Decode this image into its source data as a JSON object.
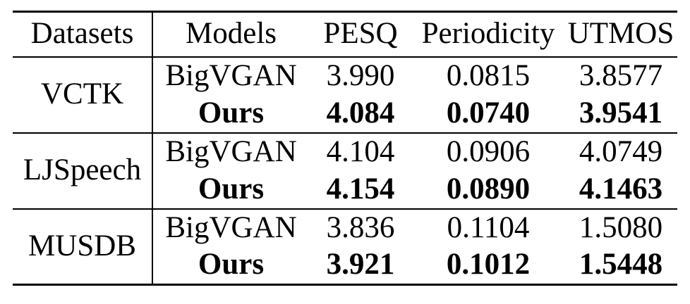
{
  "table": {
    "headers": {
      "datasets": "Datasets",
      "models": "Models",
      "pesq": "PESQ",
      "periodicity": "Periodicity",
      "utmos": "UTMOS"
    },
    "groups": [
      {
        "dataset": "VCTK",
        "rows": [
          {
            "model": "BigVGAN",
            "pesq": "3.990",
            "periodicity": "0.0815",
            "utmos": "3.8577"
          },
          {
            "model": "Ours",
            "pesq": "4.084",
            "periodicity": "0.0740",
            "utmos": "3.9541"
          }
        ]
      },
      {
        "dataset": "LJSpeech",
        "rows": [
          {
            "model": "BigVGAN",
            "pesq": "4.104",
            "periodicity": "0.0906",
            "utmos": "4.0749"
          },
          {
            "model": "Ours",
            "pesq": "4.154",
            "periodicity": "0.0890",
            "utmos": "4.1463"
          }
        ]
      },
      {
        "dataset": "MUSDB",
        "rows": [
          {
            "model": "BigVGAN",
            "pesq": "3.836",
            "periodicity": "0.1104",
            "utmos": "1.5080"
          },
          {
            "model": "Ours",
            "pesq": "3.921",
            "periodicity": "0.1012",
            "utmos": "1.5448"
          }
        ]
      }
    ],
    "emphasis_note": "Ours rows are bold (best results)"
  },
  "chart_data": {
    "type": "table",
    "columns": [
      "Datasets",
      "Models",
      "PESQ",
      "Periodicity",
      "UTMOS"
    ],
    "rows": [
      [
        "VCTK",
        "BigVGAN",
        3.99,
        0.0815,
        3.8577
      ],
      [
        "VCTK",
        "Ours",
        4.084,
        0.074,
        3.9541
      ],
      [
        "LJSpeech",
        "BigVGAN",
        4.104,
        0.0906,
        4.0749
      ],
      [
        "LJSpeech",
        "Ours",
        4.154,
        0.089,
        4.1463
      ],
      [
        "MUSDB",
        "BigVGAN",
        3.836,
        0.1104,
        1.508
      ],
      [
        "MUSDB",
        "Ours",
        3.921,
        0.1012,
        1.5448
      ]
    ],
    "bold_row_indices": [
      1,
      3,
      5
    ],
    "layout": {
      "vertical_divider_after_column": "Datasets",
      "rules": [
        "top-thick",
        "below-header",
        "between-groups",
        "bottom-thick"
      ]
    }
  },
  "colors": {
    "background": "#ffffff",
    "text": "#000000",
    "rules": "#000000"
  }
}
